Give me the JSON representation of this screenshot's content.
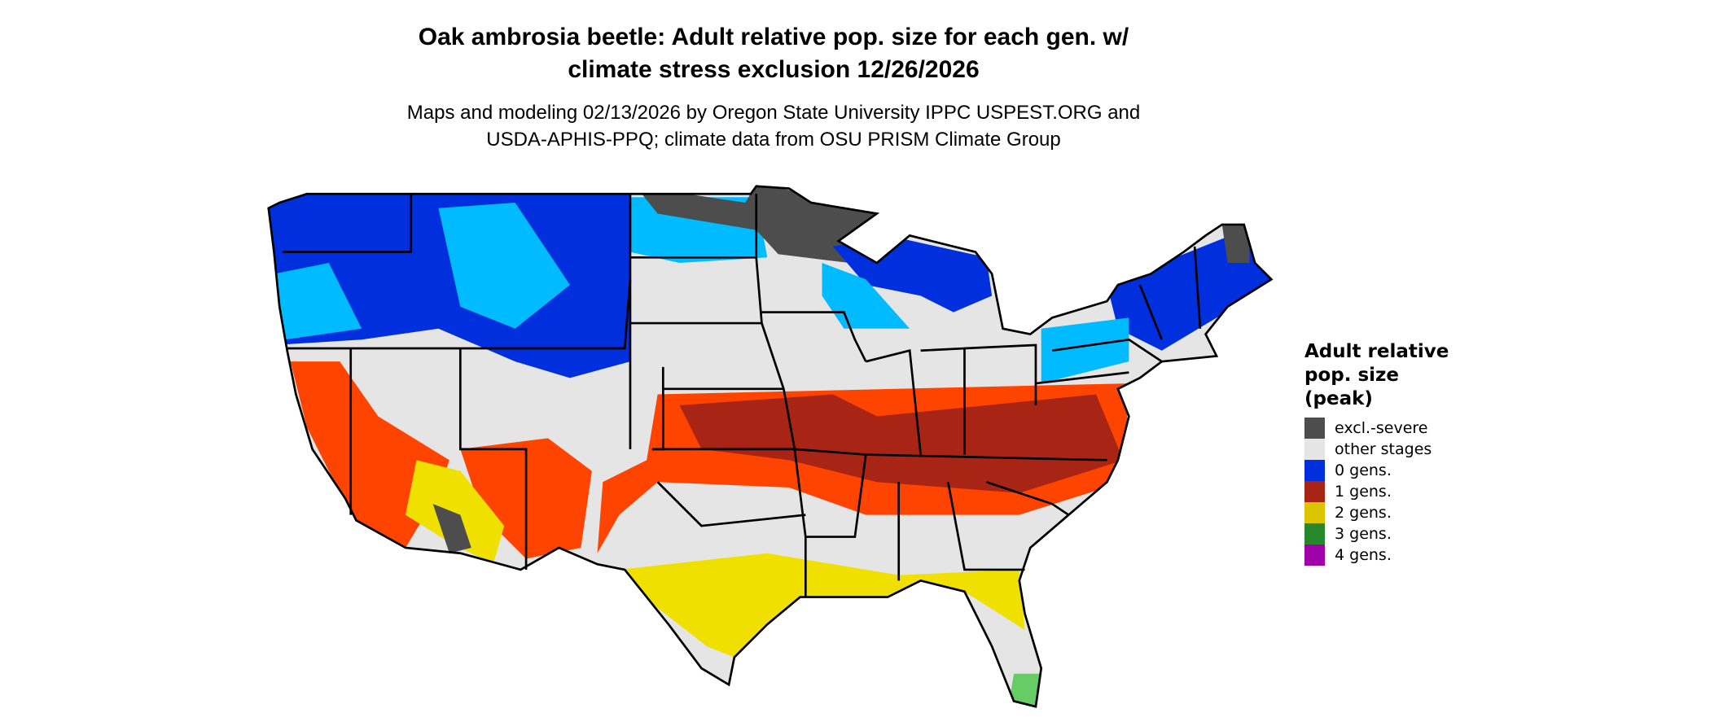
{
  "title": {
    "line1": "Oak ambrosia beetle: Adult relative pop. size for each gen. w/",
    "line2": "climate stress exclusion 12/26/2026"
  },
  "subtitle": {
    "line1": "Maps and modeling 02/13/2026 by Oregon State University IPPC USPEST.ORG and",
    "line2": "USDA-APHIS-PPQ; climate data from OSU PRISM Climate Group"
  },
  "legend": {
    "title_lines": [
      "Adult relative",
      "pop. size",
      "(peak)"
    ],
    "items": [
      {
        "label": "excl.-severe",
        "color": "#4d4d4d"
      },
      {
        "label": "other stages",
        "color": "#e5e5e5"
      },
      {
        "label": "0 gens.",
        "color": "#0030dd"
      },
      {
        "label": "1 gens.",
        "color": "#a82414"
      },
      {
        "label": "2 gens.",
        "color": "#dcc400"
      },
      {
        "label": "3 gens.",
        "color": "#26882a"
      },
      {
        "label": "4 gens.",
        "color": "#a000a8"
      }
    ]
  },
  "map_colors": {
    "light_blue": "#00bbff",
    "orange_red": "#ff4400",
    "yellow": "#f0e000",
    "light_green": "#66cc66"
  }
}
